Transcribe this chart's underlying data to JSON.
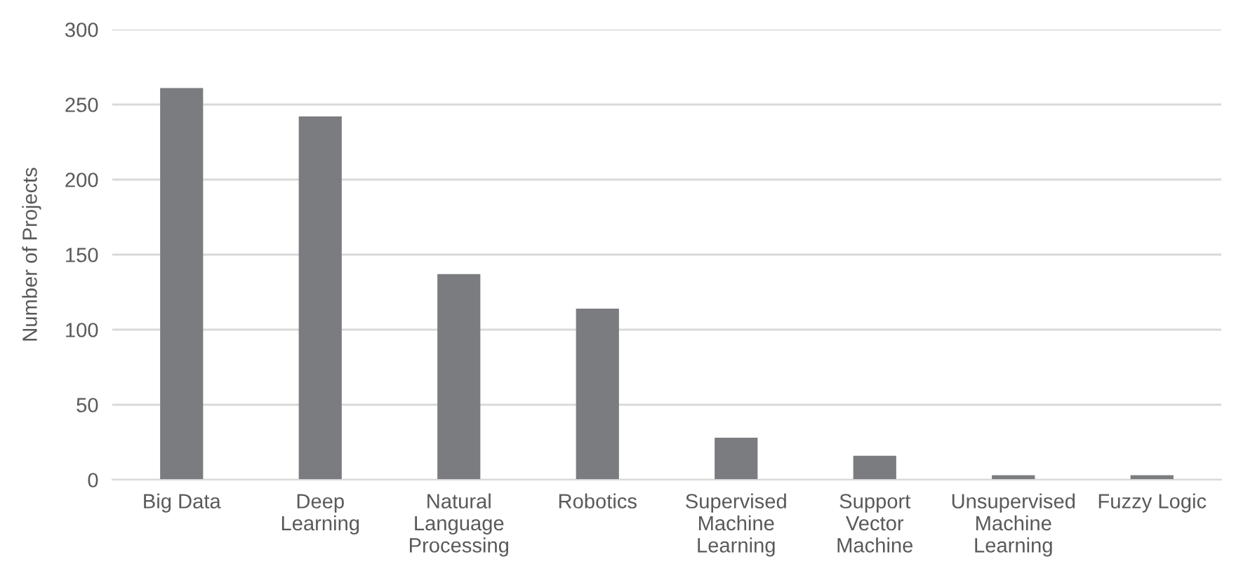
{
  "chart_data": {
    "type": "bar",
    "ylabel": "Number of Projects",
    "categories": [
      "Big Data",
      "Deep Learning",
      "Natural Language Processing",
      "Robotics",
      "Supervised Machine Learning",
      "Support Vector Machine",
      "Unsupervised Machine Learning",
      "Fuzzy Logic"
    ],
    "values": [
      261,
      242,
      137,
      114,
      28,
      16,
      3,
      3
    ],
    "color": "#7b7c80",
    "ylim": [
      0,
      300
    ],
    "yticks": [
      0,
      50,
      100,
      150,
      200,
      250,
      300
    ],
    "grid": "y",
    "legend": false
  }
}
